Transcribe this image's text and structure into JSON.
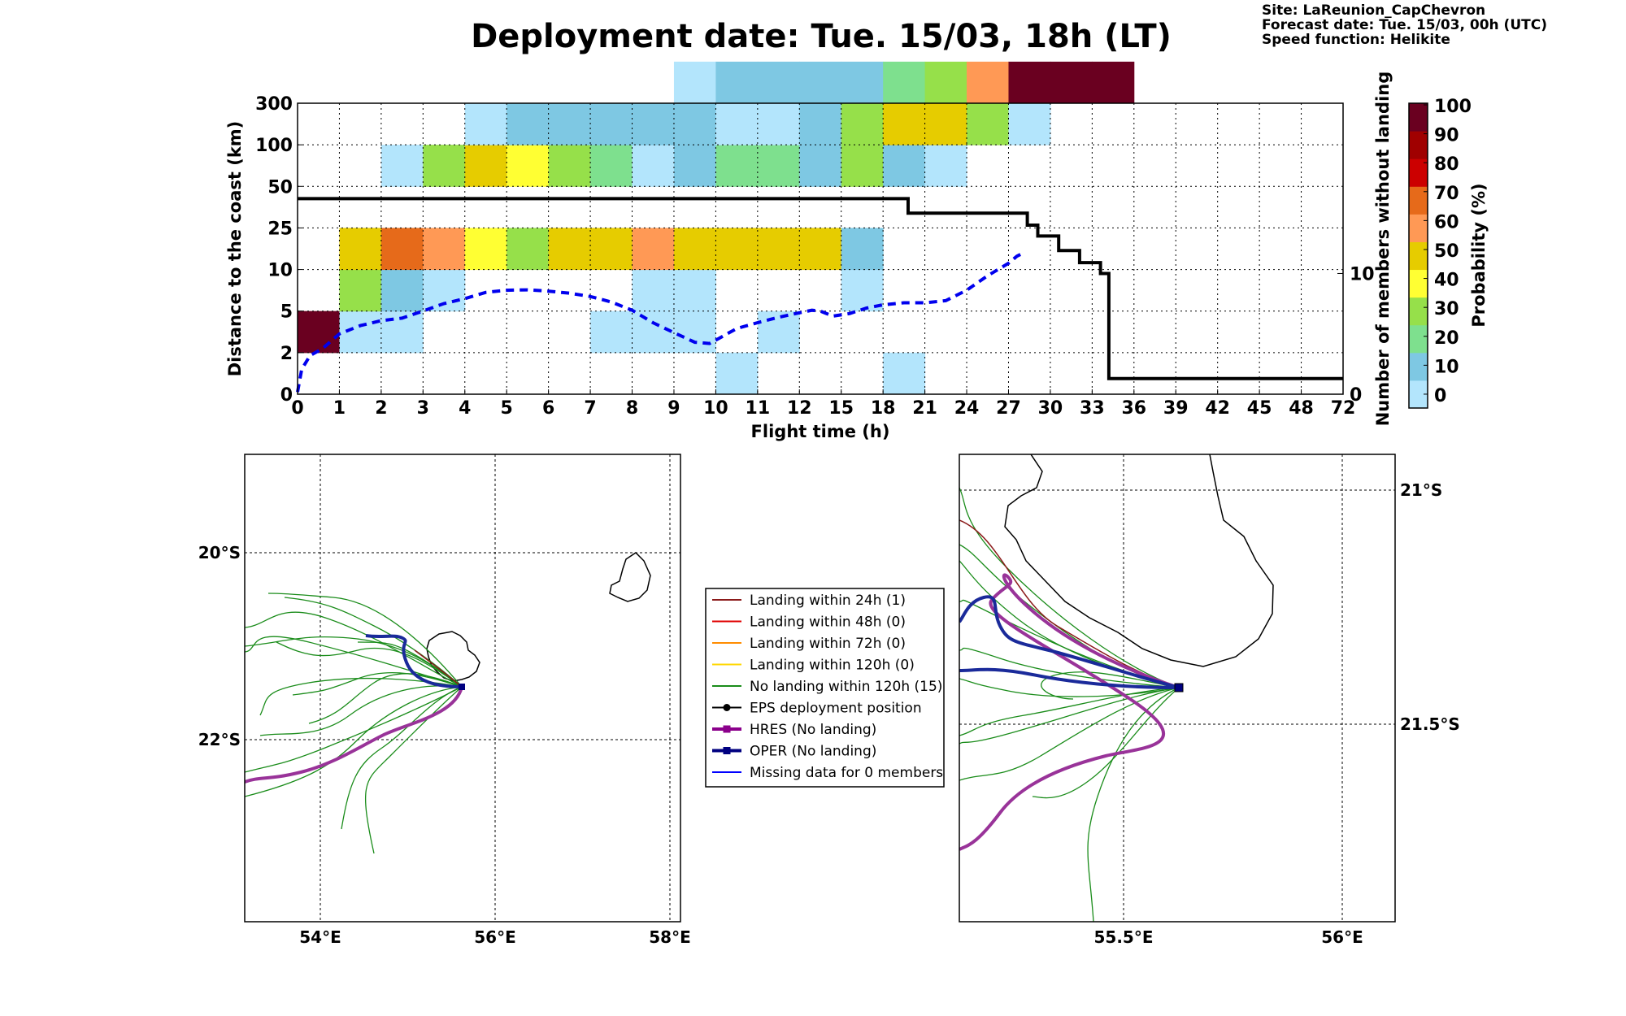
{
  "title": "Deployment date: Tue. 15/03, 18h (LT)",
  "info": {
    "site": "Site: LaReunion_CapChevron",
    "forecast": "Forecast date: Tue. 15/03, 00h (UTC)",
    "speed": "Speed function: Helikite"
  },
  "chart_data": {
    "type": "heatmap",
    "xlabel": "Flight time (h)",
    "ylabel": "Distance to the coast (km)",
    "ylabel_right": "Number of members without landing",
    "colorbar_label": "Probability (%)",
    "x_tick_labels": [
      "0",
      "1",
      "2",
      "3",
      "4",
      "5",
      "6",
      "7",
      "8",
      "9",
      "10",
      "11",
      "12",
      "15",
      "18",
      "21",
      "24",
      "27",
      "30",
      "33",
      "36",
      "39",
      "42",
      "45",
      "48",
      "72"
    ],
    "y_tick_labels": [
      "0",
      "2",
      "5",
      "10",
      "25",
      "50",
      "100",
      "300"
    ],
    "right_ticks": [
      {
        "label": "0",
        "value": 0
      },
      {
        "label": "10",
        "value": 10
      }
    ],
    "colorbar_ticks": [
      "0",
      "10",
      "20",
      "30",
      "40",
      "50",
      "60",
      "70",
      "80",
      "90",
      "100"
    ],
    "colorbar_colors": [
      "#b3e5fc",
      "#7ec8e3",
      "#7ee08e",
      "#96e04a",
      "#ffff33",
      "#e6cc00",
      "#ff9955",
      "#e66a1a",
      "#cc0000",
      "#a00000",
      "#6a0020"
    ],
    "grid": true,
    "cells": [
      [
        0,
        1,
        "#6a0020"
      ],
      [
        1,
        1,
        "#b3e5fc"
      ],
      [
        1,
        2,
        "#96e04a"
      ],
      [
        1,
        3,
        "#e6cc00"
      ],
      [
        2,
        1,
        "#b3e5fc"
      ],
      [
        2,
        2,
        "#7ec8e3"
      ],
      [
        2,
        3,
        "#e66a1a"
      ],
      [
        2,
        5,
        "#b3e5fc"
      ],
      [
        3,
        2,
        "#b3e5fc"
      ],
      [
        3,
        3,
        "#ff9955"
      ],
      [
        3,
        5,
        "#96e04a"
      ],
      [
        4,
        3,
        "#ffff33"
      ],
      [
        4,
        5,
        "#e6cc00"
      ],
      [
        4,
        6,
        "#b3e5fc"
      ],
      [
        5,
        3,
        "#96e04a"
      ],
      [
        5,
        5,
        "#ffff33"
      ],
      [
        5,
        6,
        "#7ec8e3"
      ],
      [
        6,
        3,
        "#e6cc00"
      ],
      [
        6,
        5,
        "#96e04a"
      ],
      [
        6,
        6,
        "#7ec8e3"
      ],
      [
        7,
        1,
        "#b3e5fc"
      ],
      [
        7,
        3,
        "#e6cc00"
      ],
      [
        7,
        5,
        "#7ee08e"
      ],
      [
        7,
        6,
        "#7ec8e3"
      ],
      [
        8,
        1,
        "#b3e5fc"
      ],
      [
        8,
        2,
        "#b3e5fc"
      ],
      [
        8,
        3,
        "#ff9955"
      ],
      [
        8,
        5,
        "#b3e5fc"
      ],
      [
        8,
        6,
        "#7ec8e3"
      ],
      [
        9,
        1,
        "#b3e5fc"
      ],
      [
        9,
        2,
        "#b3e5fc"
      ],
      [
        9,
        3,
        "#e6cc00"
      ],
      [
        9,
        5,
        "#7ec8e3"
      ],
      [
        9,
        6,
        "#7ec8e3"
      ],
      [
        9,
        7,
        "#b3e5fc"
      ],
      [
        10,
        0,
        "#b3e5fc"
      ],
      [
        10,
        3,
        "#e6cc00"
      ],
      [
        10,
        5,
        "#7ee08e"
      ],
      [
        10,
        6,
        "#b3e5fc"
      ],
      [
        10,
        7,
        "#7ec8e3"
      ],
      [
        11,
        1,
        "#b3e5fc"
      ],
      [
        11,
        3,
        "#e6cc00"
      ],
      [
        11,
        5,
        "#7ee08e"
      ],
      [
        11,
        6,
        "#b3e5fc"
      ],
      [
        11,
        7,
        "#7ec8e3"
      ],
      [
        12,
        3,
        "#e6cc00"
      ],
      [
        12,
        5,
        "#7ec8e3"
      ],
      [
        12,
        6,
        "#7ec8e3"
      ],
      [
        12,
        7,
        "#7ec8e3"
      ],
      [
        13,
        2,
        "#b3e5fc"
      ],
      [
        13,
        3,
        "#7ec8e3"
      ],
      [
        13,
        5,
        "#96e04a"
      ],
      [
        13,
        6,
        "#96e04a"
      ],
      [
        13,
        7,
        "#7ec8e3"
      ],
      [
        14,
        0,
        "#b3e5fc"
      ],
      [
        14,
        5,
        "#7ec8e3"
      ],
      [
        14,
        6,
        "#e6cc00"
      ],
      [
        14,
        7,
        "#7ee08e"
      ],
      [
        15,
        5,
        "#b3e5fc"
      ],
      [
        15,
        6,
        "#e6cc00"
      ],
      [
        15,
        7,
        "#96e04a"
      ],
      [
        16,
        6,
        "#96e04a"
      ],
      [
        16,
        7,
        "#ff9955"
      ],
      [
        17,
        6,
        "#b3e5fc"
      ],
      [
        17,
        7,
        "#6a0020"
      ],
      [
        18,
        7,
        "#6a0020"
      ],
      [
        19,
        7,
        "#6a0020"
      ]
    ],
    "median_curve": [
      [
        0,
        0.05
      ],
      [
        0.1,
        0.6
      ],
      [
        0.3,
        0.93
      ],
      [
        0.6,
        1.1
      ],
      [
        1,
        1.45
      ],
      [
        1.5,
        1.65
      ],
      [
        2,
        1.77
      ],
      [
        2.5,
        1.83
      ],
      [
        3,
        2.0
      ],
      [
        3.5,
        2.18
      ],
      [
        4,
        2.3
      ],
      [
        4.5,
        2.45
      ],
      [
        5,
        2.5
      ],
      [
        5.5,
        2.51
      ],
      [
        6,
        2.48
      ],
      [
        6.5,
        2.43
      ],
      [
        7,
        2.35
      ],
      [
        7.5,
        2.22
      ],
      [
        8,
        2.02
      ],
      [
        8.5,
        1.72
      ],
      [
        9,
        1.48
      ],
      [
        9.5,
        1.25
      ],
      [
        9.85,
        1.22
      ],
      [
        10,
        1.3
      ],
      [
        10.5,
        1.58
      ],
      [
        11,
        1.72
      ],
      [
        11.5,
        1.85
      ],
      [
        12,
        1.96
      ],
      [
        12.3,
        2.02
      ],
      [
        12.5,
        2.0
      ],
      [
        12.8,
        1.88
      ],
      [
        13.2,
        1.94
      ],
      [
        13.6,
        2.07
      ],
      [
        14,
        2.15
      ],
      [
        14.5,
        2.2
      ],
      [
        15,
        2.2
      ],
      [
        15.5,
        2.25
      ],
      [
        16,
        2.5
      ],
      [
        16.5,
        2.85
      ],
      [
        17,
        3.15
      ],
      [
        17.2,
        3.32
      ],
      [
        17.4,
        3.42
      ]
    ],
    "members_step": [
      [
        0,
        16.2
      ],
      [
        14.6,
        16.2
      ],
      [
        14.6,
        15.0
      ],
      [
        17.45,
        15.0
      ],
      [
        17.45,
        14.0
      ],
      [
        17.7,
        14.0
      ],
      [
        17.7,
        13.1
      ],
      [
        18.2,
        13.1
      ],
      [
        18.2,
        11.9
      ],
      [
        18.7,
        11.9
      ],
      [
        18.7,
        10.9
      ],
      [
        19.2,
        10.9
      ],
      [
        19.2,
        10.0
      ],
      [
        19.4,
        10.0
      ],
      [
        19.4,
        1.3
      ],
      [
        25,
        1.3
      ]
    ],
    "right_axis_max": 24.1,
    "map_left": {
      "x_ticks": [
        {
          "label": "54°E",
          "value": 54
        },
        {
          "label": "56°E",
          "value": 56
        },
        {
          "label": "58°E",
          "value": 58
        }
      ],
      "y_ticks": [
        {
          "label": "20°S",
          "value": -20
        },
        {
          "label": "22°S",
          "value": -22
        }
      ]
    },
    "map_right": {
      "x_ticks": [
        {
          "label": "55.5°E",
          "value": 55.5
        },
        {
          "label": "56°E",
          "value": 56
        }
      ],
      "y_ticks": [
        {
          "label": "21°S",
          "value": -21
        },
        {
          "label": "21.5°S",
          "value": -21.5
        }
      ]
    },
    "legend": [
      {
        "label": "Landing within 24h (1)",
        "color": "#8b1a1a",
        "marker": "none"
      },
      {
        "label": "Landing within 48h (0)",
        "color": "#e00000",
        "marker": "none"
      },
      {
        "label": "Landing within 72h (0)",
        "color": "#ff8c00",
        "marker": "none"
      },
      {
        "label": "Landing within 120h (0)",
        "color": "#ffd700",
        "marker": "none"
      },
      {
        "label": "No landing within 120h (15)",
        "color": "#1a8c1a",
        "marker": "none"
      },
      {
        "label": "EPS deployment position",
        "color": "#000000",
        "marker": "circle"
      },
      {
        "label": "HRES (No landing)",
        "color": "#8b008b",
        "marker": "square"
      },
      {
        "label": "OPER (No landing)",
        "color": "#000080",
        "marker": "square"
      },
      {
        "label": "Missing data for 0 members",
        "color": "#0000ff",
        "marker": "none"
      }
    ]
  }
}
